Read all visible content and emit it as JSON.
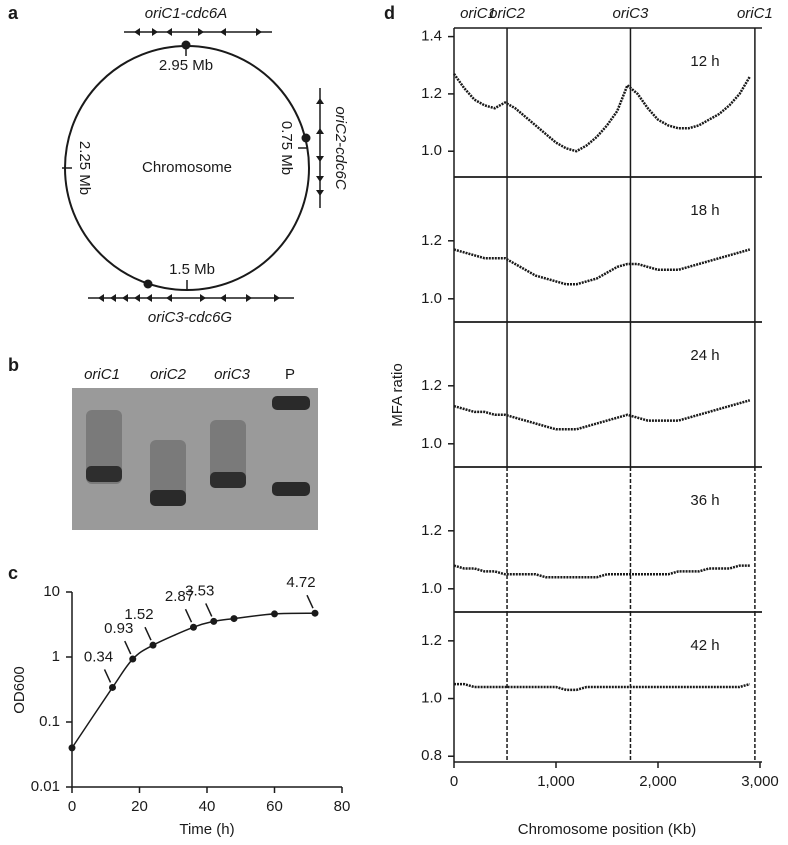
{
  "panel_labels": [
    "a",
    "b",
    "c",
    "d"
  ],
  "panel_a": {
    "top_gene": "oriC1-cdc6A",
    "top_pos": "2.95 Mb",
    "right_gene": "oriC2-cdc6C",
    "right_pos": "0.75 Mb",
    "left_pos": "2.25 Mb",
    "center": "Chromosome",
    "bottom_pos": "1.5 Mb",
    "bottom_gene": "oriC3-cdc6G"
  },
  "panel_b": {
    "lanes": [
      "oriC1",
      "oriC2",
      "oriC3",
      "P"
    ]
  },
  "panel_d": {
    "ylabel": "MFA ratio",
    "xlabel": "Chromosome position (Kb)",
    "origins": [
      {
        "label": "oriC1",
        "x": 0
      },
      {
        "label": "oriC2",
        "x": 520
      },
      {
        "label": "oriC3",
        "x": 1730
      },
      {
        "label": "oriC1",
        "x": 2950
      }
    ]
  },
  "chart_data": [
    {
      "type": "line",
      "xlabel": "Time (h)",
      "ylabel": "OD600",
      "log_y": true,
      "color": "#1a1a1a",
      "x": [
        0,
        12,
        18,
        24,
        36,
        42,
        48,
        60,
        72
      ],
      "values": [
        0.04,
        0.34,
        0.93,
        1.52,
        2.87,
        3.53,
        3.9,
        4.6,
        4.72
      ],
      "value_labels": [
        null,
        "0.34",
        "0.93",
        "1.52",
        "2.87",
        "3.53",
        null,
        null,
        "4.72"
      ],
      "xlim": [
        0,
        80
      ],
      "xticks": [
        0,
        20,
        40,
        60,
        80
      ],
      "ylim": [
        0.01,
        10
      ],
      "yticks": [
        0.01,
        0.1,
        1,
        10
      ]
    },
    {
      "type": "line",
      "annotation": "12 h",
      "color": "#1a1a1a",
      "marker_style": "solid",
      "markers": [
        520,
        1730,
        2950
      ],
      "x": [
        0,
        100,
        200,
        300,
        400,
        500,
        600,
        700,
        800,
        900,
        1000,
        1100,
        1200,
        1300,
        1400,
        1500,
        1600,
        1700,
        1800,
        1900,
        2000,
        2100,
        2200,
        2300,
        2400,
        2500,
        2600,
        2700,
        2800,
        2900
      ],
      "values": [
        1.27,
        1.22,
        1.18,
        1.16,
        1.15,
        1.17,
        1.15,
        1.12,
        1.09,
        1.06,
        1.03,
        1.01,
        1.0,
        1.02,
        1.05,
        1.09,
        1.14,
        1.23,
        1.2,
        1.15,
        1.11,
        1.09,
        1.08,
        1.08,
        1.09,
        1.11,
        1.13,
        1.16,
        1.2,
        1.26
      ],
      "xlim": [
        0,
        3000
      ],
      "ylim": [
        0.91,
        1.43
      ],
      "yticks": [
        {
          "value": 1,
          "label": "1.0"
        },
        1.2,
        1.4
      ]
    },
    {
      "type": "line",
      "annotation": "18 h",
      "color": "#1a1a1a",
      "marker_style": "solid",
      "markers": [
        520,
        1730,
        2950
      ],
      "x": [
        0,
        100,
        200,
        300,
        400,
        500,
        600,
        700,
        800,
        900,
        1000,
        1100,
        1200,
        1300,
        1400,
        1500,
        1600,
        1700,
        1800,
        1900,
        2000,
        2100,
        2200,
        2300,
        2400,
        2500,
        2600,
        2700,
        2800,
        2900
      ],
      "values": [
        1.17,
        1.16,
        1.15,
        1.14,
        1.14,
        1.14,
        1.12,
        1.1,
        1.08,
        1.07,
        1.06,
        1.05,
        1.05,
        1.06,
        1.07,
        1.09,
        1.11,
        1.12,
        1.12,
        1.11,
        1.1,
        1.1,
        1.1,
        1.11,
        1.12,
        1.13,
        1.14,
        1.15,
        1.16,
        1.17
      ],
      "xlim": [
        0,
        3000
      ],
      "ylim": [
        0.92,
        1.42
      ],
      "yticks": [
        {
          "value": 1,
          "label": "1.0"
        },
        1.2
      ]
    },
    {
      "type": "line",
      "annotation": "24 h",
      "color": "#1a1a1a",
      "marker_style": "solid",
      "markers": [
        520,
        1730,
        2950
      ],
      "x": [
        0,
        100,
        200,
        300,
        400,
        500,
        600,
        700,
        800,
        900,
        1000,
        1100,
        1200,
        1300,
        1400,
        1500,
        1600,
        1700,
        1800,
        1900,
        2000,
        2100,
        2200,
        2300,
        2400,
        2500,
        2600,
        2700,
        2800,
        2900
      ],
      "values": [
        1.13,
        1.12,
        1.11,
        1.11,
        1.1,
        1.1,
        1.09,
        1.08,
        1.07,
        1.06,
        1.05,
        1.05,
        1.05,
        1.06,
        1.07,
        1.08,
        1.09,
        1.1,
        1.09,
        1.08,
        1.08,
        1.08,
        1.08,
        1.09,
        1.1,
        1.11,
        1.12,
        1.13,
        1.14,
        1.15
      ],
      "xlim": [
        0,
        3000
      ],
      "ylim": [
        0.92,
        1.42
      ],
      "yticks": [
        {
          "value": 1,
          "label": "1.0"
        },
        1.2
      ]
    },
    {
      "type": "line",
      "annotation": "36 h",
      "color": "#1a1a1a",
      "marker_style": "dashed",
      "markers": [
        520,
        1730,
        2950
      ],
      "x": [
        0,
        100,
        200,
        300,
        400,
        500,
        600,
        700,
        800,
        900,
        1000,
        1100,
        1200,
        1300,
        1400,
        1500,
        1600,
        1700,
        1800,
        1900,
        2000,
        2100,
        2200,
        2300,
        2400,
        2500,
        2600,
        2700,
        2800,
        2900
      ],
      "values": [
        1.08,
        1.07,
        1.07,
        1.06,
        1.06,
        1.05,
        1.05,
        1.05,
        1.05,
        1.04,
        1.04,
        1.04,
        1.04,
        1.04,
        1.04,
        1.05,
        1.05,
        1.05,
        1.05,
        1.05,
        1.05,
        1.05,
        1.06,
        1.06,
        1.06,
        1.07,
        1.07,
        1.07,
        1.08,
        1.08
      ],
      "xlim": [
        0,
        3000
      ],
      "ylim": [
        0.92,
        1.42
      ],
      "yticks": [
        {
          "value": 1,
          "label": "1.0"
        },
        1.2
      ]
    },
    {
      "type": "line",
      "annotation": "42 h",
      "color": "#1a1a1a",
      "marker_style": "dashed",
      "markers": [
        520,
        1730,
        2950
      ],
      "x": [
        0,
        100,
        200,
        300,
        400,
        500,
        600,
        700,
        800,
        900,
        1000,
        1100,
        1200,
        1300,
        1400,
        1500,
        1600,
        1700,
        1800,
        1900,
        2000,
        2100,
        2200,
        2300,
        2400,
        2500,
        2600,
        2700,
        2800,
        2900
      ],
      "values": [
        1.05,
        1.05,
        1.04,
        1.04,
        1.04,
        1.04,
        1.04,
        1.04,
        1.04,
        1.04,
        1.04,
        1.03,
        1.03,
        1.04,
        1.04,
        1.04,
        1.04,
        1.04,
        1.04,
        1.04,
        1.04,
        1.04,
        1.04,
        1.04,
        1.04,
        1.04,
        1.04,
        1.04,
        1.04,
        1.05
      ],
      "xlim": [
        0,
        3000
      ],
      "ylim": [
        0.78,
        1.3
      ],
      "yticks": [
        0.8,
        {
          "value": 1,
          "label": "1.0"
        },
        1.2
      ],
      "xticks": [
        0,
        {
          "value": 1000,
          "label": "1,000"
        },
        {
          "value": 2000,
          "label": "2,000"
        },
        {
          "value": 3000,
          "label": "3,000"
        }
      ]
    }
  ]
}
